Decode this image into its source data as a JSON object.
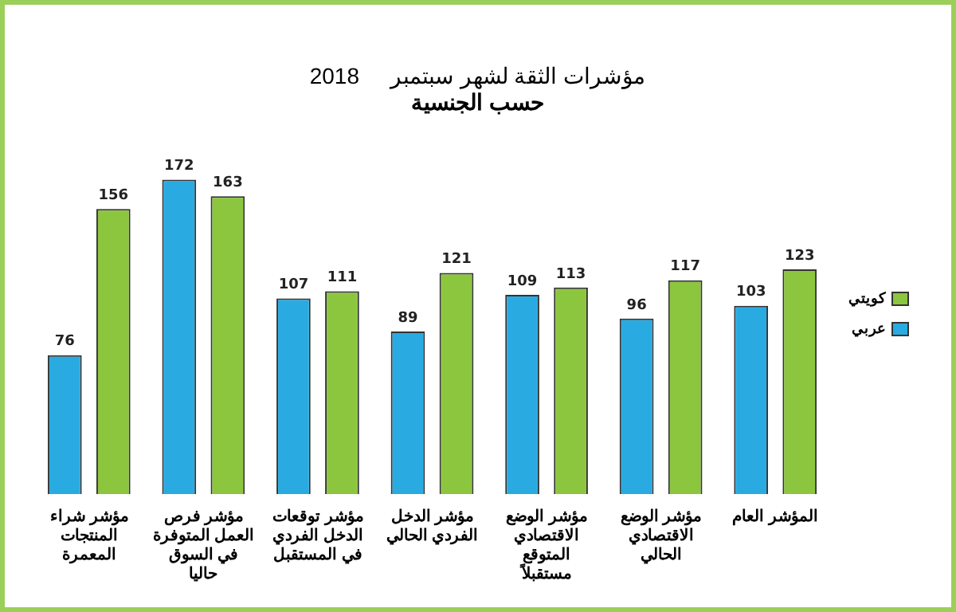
{
  "chart_data": {
    "type": "bar",
    "title": "مؤشرات الثقة لشهر سبتمبر     2018",
    "subtitle": "حسب الجنسية",
    "categories": [
      "مؤشر شراء المنتجات المعمرة",
      "مؤشر فرص العمل المتوفرة في السوق حاليا",
      "مؤشر توقعات الدخل الفردي في المستقبل",
      "مؤشر الدخل الفردي الحالي",
      "مؤشر الوضع الاقتصادي المتوقع مستقبلاً",
      "مؤشر الوضع الاقتصادي الحالي",
      "المؤشر العام"
    ],
    "series": [
      {
        "name": "عربي",
        "color": "#29abe2",
        "values": [
          76,
          172,
          107,
          89,
          109,
          96,
          103
        ]
      },
      {
        "name": "كويتي",
        "color": "#8cc63f",
        "values": [
          156,
          163,
          111,
          121,
          113,
          117,
          123
        ]
      }
    ],
    "data_labels": true,
    "grid": false,
    "legend": "right"
  }
}
